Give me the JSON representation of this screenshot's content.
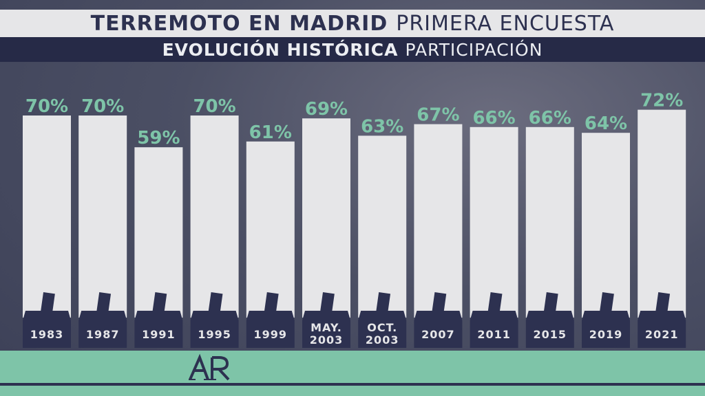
{
  "header": {
    "title_bold": "TERREMOTO EN MADRID",
    "title_rest": "PRIMERA ENCUESTA",
    "subtitle_bold": "EVOLUCIÓN HISTÓRICA",
    "subtitle_rest": "PARTICIPACIÓN"
  },
  "colors": {
    "navy": "#2d3150",
    "band_navy": "#262a47",
    "bar": "#e6e6e8",
    "value_green": "#7ec4a8",
    "footer_green": "#7ec4a8"
  },
  "icons": {
    "bar_icon": "ballot-box-icon",
    "logo": "AR"
  },
  "chart_data": {
    "type": "bar",
    "title": "EVOLUCIÓN HISTÓRICA PARTICIPACIÓN",
    "categories": [
      "1983",
      "1987",
      "1991",
      "1995",
      "1999",
      "MAY. 2003",
      "OCT. 2003",
      "2007",
      "2011",
      "2015",
      "2019",
      "2021"
    ],
    "category_lines": [
      [
        "1983"
      ],
      [
        "1987"
      ],
      [
        "1991"
      ],
      [
        "1995"
      ],
      [
        "1999"
      ],
      [
        "MAY.",
        "2003"
      ],
      [
        "OCT.",
        "2003"
      ],
      [
        "2007"
      ],
      [
        "2011"
      ],
      [
        "2015"
      ],
      [
        "2019"
      ],
      [
        "2021"
      ]
    ],
    "values": [
      70,
      70,
      59,
      70,
      61,
      69,
      63,
      67,
      66,
      66,
      64,
      72
    ],
    "value_labels": [
      "70%",
      "70%",
      "59%",
      "70%",
      "61%",
      "69%",
      "63%",
      "67%",
      "66%",
      "66%",
      "64%",
      "72%"
    ],
    "unit": "%",
    "grid": false,
    "legend": "none"
  }
}
